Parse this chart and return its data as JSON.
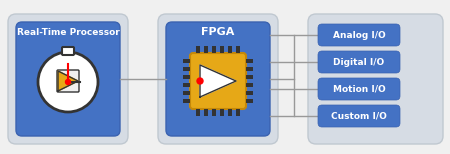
{
  "bg_color": "#f0f0f0",
  "outer_box_color": "#d6dce4",
  "inner_box_color": "#4472c4",
  "io_box_color": "#4472c4",
  "io_label_color": "#ffffff",
  "label_color": "#ffffff",
  "line_color": "#999999",
  "rtp_label": "Real-Time Processor",
  "fpga_label": "FPGA",
  "io_labels": [
    "Analog I/O",
    "Digital I/O",
    "Motion I/O",
    "Custom I/O"
  ],
  "chip_color": "#e6a817",
  "chip_pin_color": "#333333"
}
